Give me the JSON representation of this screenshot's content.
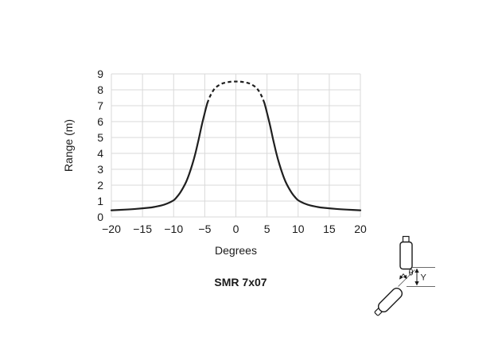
{
  "chart_data": {
    "type": "line",
    "title": "SMR 7x07",
    "xlabel": "Degrees",
    "ylabel": "Range (m)",
    "xlim": [
      -20,
      20
    ],
    "ylim": [
      0,
      9
    ],
    "x_ticks": [
      -20,
      -15,
      -10,
      -5,
      0,
      5,
      10,
      15,
      20
    ],
    "y_ticks": [
      0,
      1,
      2,
      3,
      4,
      5,
      6,
      7,
      8,
      9
    ],
    "grid": true,
    "legend": "none",
    "colors": {
      "curve": "#1f1f1f",
      "grid": "#d9d9d9",
      "text": "#1a1a1a"
    },
    "series": [
      {
        "name": "beam-pattern-left-solid",
        "style": "solid",
        "x": [
          -20,
          -18,
          -16,
          -14,
          -13,
          -12,
          -11,
          -10,
          -9.5,
          -9,
          -8.5,
          -8,
          -7.5,
          -7,
          -6.5,
          -6,
          -5.5,
          -5,
          -4.6
        ],
        "y": [
          0.42,
          0.46,
          0.51,
          0.58,
          0.64,
          0.72,
          0.85,
          1.05,
          1.25,
          1.5,
          1.82,
          2.2,
          2.7,
          3.3,
          4.0,
          4.85,
          5.75,
          6.55,
          7.15
        ]
      },
      {
        "name": "beam-pattern-top-dashed",
        "style": "dashed",
        "x": [
          -4.6,
          -4.2,
          -3.8,
          -3.4,
          -3.0,
          -2.5,
          -2.0,
          -1.5,
          -1.0,
          -0.5,
          0,
          0.5,
          1.0,
          1.5,
          2.0,
          2.5,
          3.0,
          3.4,
          3.8,
          4.2,
          4.6
        ],
        "y": [
          7.15,
          7.55,
          7.85,
          8.08,
          8.22,
          8.34,
          8.42,
          8.47,
          8.5,
          8.52,
          8.52,
          8.52,
          8.5,
          8.47,
          8.42,
          8.34,
          8.22,
          8.08,
          7.85,
          7.55,
          7.15
        ]
      },
      {
        "name": "beam-pattern-right-solid",
        "style": "solid",
        "x": [
          4.6,
          5,
          5.5,
          6,
          6.5,
          7,
          7.5,
          8,
          8.5,
          9,
          9.5,
          10,
          11,
          12,
          13,
          14,
          16,
          18,
          20
        ],
        "y": [
          7.15,
          6.55,
          5.75,
          4.85,
          4.0,
          3.3,
          2.7,
          2.2,
          1.82,
          1.5,
          1.25,
          1.05,
          0.85,
          0.72,
          0.64,
          0.58,
          0.51,
          0.46,
          0.42
        ]
      }
    ]
  },
  "inset_diagram": {
    "angle_label": "θ",
    "offset_label": "Y"
  }
}
